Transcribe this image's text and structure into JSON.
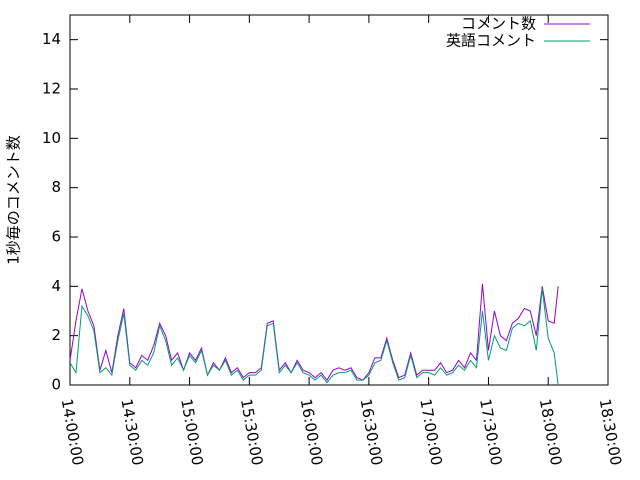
{
  "chart_data": {
    "type": "line",
    "y_label": "1秒毎のコメント数",
    "x": [
      "14:00:00",
      "14:03:00",
      "14:06:00",
      "14:09:00",
      "14:12:00",
      "14:15:00",
      "14:18:00",
      "14:21:00",
      "14:24:00",
      "14:27:00",
      "14:30:00",
      "14:33:00",
      "14:36:00",
      "14:39:00",
      "14:42:00",
      "14:45:00",
      "14:48:00",
      "14:51:00",
      "14:54:00",
      "14:57:00",
      "15:00:00",
      "15:03:00",
      "15:06:00",
      "15:09:00",
      "15:12:00",
      "15:15:00",
      "15:18:00",
      "15:21:00",
      "15:24:00",
      "15:27:00",
      "15:30:00",
      "15:33:00",
      "15:36:00",
      "15:39:00",
      "15:42:00",
      "15:45:00",
      "15:48:00",
      "15:51:00",
      "15:54:00",
      "15:57:00",
      "16:00:00",
      "16:03:00",
      "16:06:00",
      "16:09:00",
      "16:12:00",
      "16:15:00",
      "16:18:00",
      "16:21:00",
      "16:24:00",
      "16:27:00",
      "16:30:00",
      "16:33:00",
      "16:36:00",
      "16:39:00",
      "16:42:00",
      "16:45:00",
      "16:48:00",
      "16:51:00",
      "16:54:00",
      "16:57:00",
      "17:00:00",
      "17:03:00",
      "17:06:00",
      "17:09:00",
      "17:12:00",
      "17:15:00",
      "17:18:00",
      "17:21:00",
      "17:24:00",
      "17:27:00",
      "17:30:00",
      "17:33:00",
      "17:36:00",
      "17:39:00",
      "17:42:00",
      "17:45:00",
      "17:48:00",
      "17:51:00",
      "17:54:00",
      "17:57:00",
      "18:00:00",
      "18:03:00",
      "18:05:00"
    ],
    "series": [
      {
        "name": "コメント数",
        "color": "#9400d3",
        "values": [
          1.0,
          2.6,
          3.9,
          3.0,
          2.4,
          0.6,
          1.4,
          0.5,
          2.0,
          3.1,
          0.9,
          0.7,
          1.2,
          1.0,
          1.6,
          2.5,
          2.0,
          1.0,
          1.3,
          0.6,
          1.3,
          1.0,
          1.5,
          0.4,
          0.9,
          0.6,
          1.1,
          0.5,
          0.7,
          0.3,
          0.5,
          0.5,
          0.7,
          2.5,
          2.6,
          0.6,
          0.9,
          0.5,
          1.0,
          0.6,
          0.5,
          0.3,
          0.5,
          0.2,
          0.6,
          0.7,
          0.6,
          0.7,
          0.3,
          0.2,
          0.5,
          1.1,
          1.1,
          1.9,
          1.0,
          0.3,
          0.4,
          1.3,
          0.4,
          0.6,
          0.6,
          0.6,
          0.9,
          0.5,
          0.6,
          1.0,
          0.7,
          1.3,
          1.0,
          4.1,
          1.4,
          3.0,
          2.0,
          1.8,
          2.5,
          2.7,
          3.1,
          3.0,
          2.0,
          4.0,
          2.6,
          2.5,
          4.0
        ]
      },
      {
        "name": "英語コメント",
        "color": "#009e73",
        "values": [
          0.9,
          0.5,
          3.2,
          2.8,
          2.2,
          0.5,
          0.7,
          0.4,
          1.8,
          2.9,
          0.8,
          0.6,
          1.0,
          0.8,
          1.3,
          2.4,
          1.8,
          0.8,
          1.1,
          0.6,
          1.2,
          0.9,
          1.4,
          0.4,
          0.8,
          0.6,
          1.0,
          0.4,
          0.6,
          0.2,
          0.4,
          0.4,
          0.6,
          2.4,
          2.5,
          0.5,
          0.8,
          0.5,
          0.9,
          0.5,
          0.4,
          0.2,
          0.4,
          0.1,
          0.4,
          0.5,
          0.5,
          0.6,
          0.2,
          0.2,
          0.4,
          0.9,
          1.0,
          1.8,
          0.9,
          0.2,
          0.3,
          1.2,
          0.3,
          0.5,
          0.5,
          0.4,
          0.7,
          0.4,
          0.5,
          0.8,
          0.6,
          1.0,
          0.7,
          3.0,
          1.0,
          2.0,
          1.5,
          1.4,
          2.3,
          2.5,
          2.4,
          2.6,
          1.4,
          3.9,
          1.9,
          1.3,
          0.0
        ]
      }
    ],
    "xlim": [
      "14:00:00",
      "18:30:00"
    ],
    "xticks": [
      "14:00:00",
      "14:30:00",
      "15:00:00",
      "15:30:00",
      "16:00:00",
      "16:30:00",
      "17:00:00",
      "17:30:00",
      "18:00:00",
      "18:30:00"
    ],
    "ylim": [
      0,
      15
    ],
    "yticks": [
      0,
      2,
      4,
      6,
      8,
      10,
      12,
      14
    ],
    "grid": false,
    "legend": "top-right"
  }
}
